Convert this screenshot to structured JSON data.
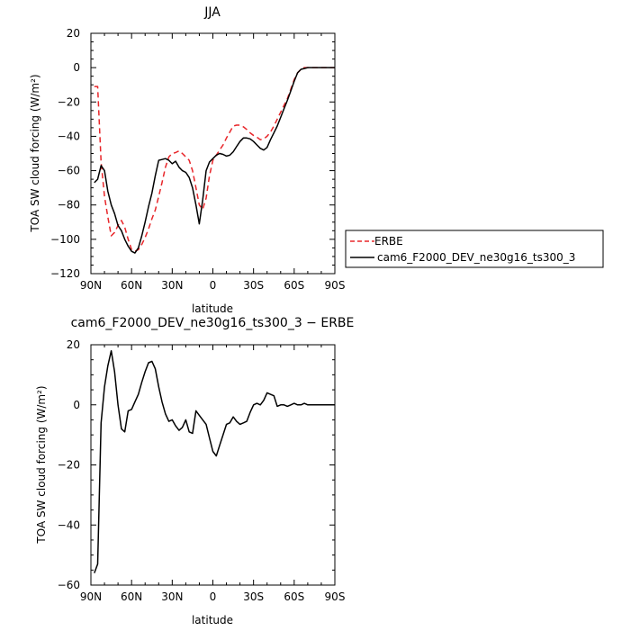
{
  "chart_data": [
    {
      "type": "line",
      "title": "JJA",
      "xlabel": "latitude",
      "ylabel": "TOA SW cloud forcing (W/m²)",
      "xlim": [
        90,
        -90
      ],
      "ylim": [
        -120,
        20
      ],
      "xticks": [
        90,
        60,
        30,
        0,
        -30,
        -60,
        -90
      ],
      "xtick_labels": [
        "90N",
        "60N",
        "30N",
        "0",
        "30S",
        "60S",
        "90S"
      ],
      "yticks": [
        20,
        0,
        -20,
        -40,
        -60,
        -80,
        -100,
        -120
      ],
      "ytick_labels": [
        "20",
        "0",
        "−20",
        "−40",
        "−60",
        "−80",
        "−100",
        "−120"
      ],
      "legend_position": "right",
      "series": [
        {
          "name": "ERBE",
          "color": "#e8262a",
          "dash": "dashed",
          "x": [
            87.5,
            85,
            82.5,
            80,
            77.5,
            75,
            72.5,
            70,
            67.5,
            65,
            62.5,
            60,
            57.5,
            55,
            52.5,
            50,
            47.5,
            45,
            42.5,
            40,
            37.5,
            35,
            32.5,
            30,
            27.5,
            25,
            22.5,
            20,
            17.5,
            15,
            12.5,
            10,
            7.5,
            5,
            2.5,
            0,
            -2.5,
            -5,
            -7.5,
            -10,
            -12.5,
            -15,
            -17.5,
            -20,
            -22.5,
            -25,
            -27.5,
            -30,
            -32.5,
            -35,
            -37.5,
            -40,
            -42.5,
            -45,
            -47.5,
            -50,
            -52.5,
            -55,
            -57.5,
            -60,
            -62.5,
            -65,
            -67.5,
            -70,
            -72.5,
            -75,
            -77.5,
            -80,
            -82.5,
            -85,
            -87.5,
            -90
          ],
          "values": [
            -11,
            -11,
            -55,
            -75,
            -87,
            -98,
            -96,
            -92,
            -89,
            -93,
            -100,
            -106,
            -107,
            -106,
            -103,
            -99,
            -94,
            -88,
            -83,
            -75,
            -67,
            -58,
            -52,
            -50,
            -49.5,
            -48.5,
            -50,
            -52,
            -54,
            -60,
            -70,
            -80,
            -82.5,
            -76,
            -63,
            -54,
            -51,
            -48,
            -45,
            -41,
            -37.5,
            -34,
            -33.5,
            -33.5,
            -34.5,
            -36,
            -38,
            -39.5,
            -40.5,
            -42,
            -41.5,
            -40,
            -37.5,
            -34,
            -30,
            -26,
            -22,
            -18,
            -12.5,
            -7,
            -3,
            -1,
            0,
            0,
            0,
            0,
            0,
            0,
            0,
            0,
            0,
            0
          ]
        },
        {
          "name": "cam6_F2000_DEV_ne30g16_ts300_3",
          "color": "#000000",
          "dash": "solid",
          "x": [
            87.5,
            85,
            82.5,
            80,
            77.5,
            75,
            72.5,
            70,
            67.5,
            65,
            62.5,
            60,
            57.5,
            55,
            52.5,
            50,
            47.5,
            45,
            42.5,
            40,
            37.5,
            35,
            32.5,
            30,
            27.5,
            25,
            22.5,
            20,
            17.5,
            15,
            12.5,
            10,
            7.5,
            5,
            2.5,
            0,
            -2.5,
            -5,
            -7.5,
            -10,
            -12.5,
            -15,
            -17.5,
            -20,
            -22.5,
            -25,
            -27.5,
            -30,
            -32.5,
            -35,
            -37.5,
            -40,
            -42.5,
            -45,
            -47.5,
            -50,
            -52.5,
            -55,
            -57.5,
            -60,
            -62.5,
            -65,
            -67.5,
            -70,
            -72.5,
            -75,
            -77.5,
            -80,
            -82.5,
            -85,
            -87.5,
            -90
          ],
          "values": [
            -67,
            -65,
            -57,
            -60,
            -72,
            -80,
            -85,
            -92,
            -95,
            -100,
            -104,
            -107,
            -108,
            -105,
            -98,
            -90,
            -81,
            -73,
            -63,
            -54,
            -53.5,
            -53,
            -54,
            -56,
            -54.5,
            -58,
            -60,
            -61,
            -64,
            -70,
            -80,
            -91,
            -77,
            -60,
            -55,
            -53,
            -51,
            -50,
            -50.5,
            -51.5,
            -51,
            -49,
            -46,
            -43,
            -41,
            -41,
            -41.5,
            -43,
            -45,
            -47,
            -48,
            -46.5,
            -42,
            -38,
            -34,
            -29,
            -24,
            -19,
            -13.5,
            -8,
            -3,
            -1,
            -0.5,
            0,
            0,
            0,
            0,
            0,
            0,
            0,
            0,
            0
          ]
        }
      ]
    },
    {
      "type": "line",
      "title": "cam6_F2000_DEV_ne30g16_ts300_3 − ERBE",
      "xlabel": "latitude",
      "ylabel": "TOA SW cloud forcing (W/m²)",
      "xlim": [
        90,
        -90
      ],
      "ylim": [
        -60,
        20
      ],
      "xticks": [
        90,
        60,
        30,
        0,
        -30,
        -60,
        -90
      ],
      "xtick_labels": [
        "90N",
        "60N",
        "30N",
        "0",
        "30S",
        "60S",
        "90S"
      ],
      "yticks": [
        20,
        0,
        -20,
        -40,
        -60
      ],
      "ytick_labels": [
        "20",
        "0",
        "−20",
        "−40",
        "−60"
      ],
      "series": [
        {
          "color": "#000000",
          "dash": "solid",
          "x": [
            87.5,
            85,
            82.5,
            80,
            77.5,
            75,
            72.5,
            70,
            67.5,
            65,
            62.5,
            60,
            57.5,
            55,
            52.5,
            50,
            47.5,
            45,
            42.5,
            40,
            37.5,
            35,
            32.5,
            30,
            27.5,
            25,
            22.5,
            20,
            17.5,
            15,
            12.5,
            10,
            7.5,
            5,
            2.5,
            0,
            -2.5,
            -5,
            -7.5,
            -10,
            -12.5,
            -15,
            -17.5,
            -20,
            -22.5,
            -25,
            -27.5,
            -30,
            -32.5,
            -35,
            -37.5,
            -40,
            -42.5,
            -45,
            -47.5,
            -50,
            -52.5,
            -55,
            -57.5,
            -60,
            -62.5,
            -65,
            -67.5,
            -70,
            -72.5,
            -75,
            -77.5,
            -80,
            -82.5,
            -85,
            -87.5,
            -90
          ],
          "values": [
            -56,
            -53,
            -6,
            6,
            13,
            18,
            11,
            0,
            -8,
            -9,
            -2,
            -1.5,
            1,
            3.5,
            7.5,
            11,
            14,
            14.5,
            12,
            6,
            1,
            -3,
            -5.5,
            -5,
            -7,
            -8.5,
            -7.5,
            -5,
            -9,
            -9.5,
            -2,
            -3.5,
            -5,
            -6.5,
            -11,
            -15.5,
            -17,
            -13.5,
            -10,
            -6.5,
            -6,
            -4,
            -5.5,
            -6.5,
            -6,
            -5.5,
            -2.5,
            0,
            0.5,
            0,
            1.5,
            4,
            3.5,
            3,
            -0.5,
            0,
            0,
            -0.5,
            0,
            0.5,
            0,
            0,
            0.5,
            0,
            0,
            0,
            0,
            0,
            0,
            0,
            0,
            0
          ]
        }
      ]
    }
  ]
}
